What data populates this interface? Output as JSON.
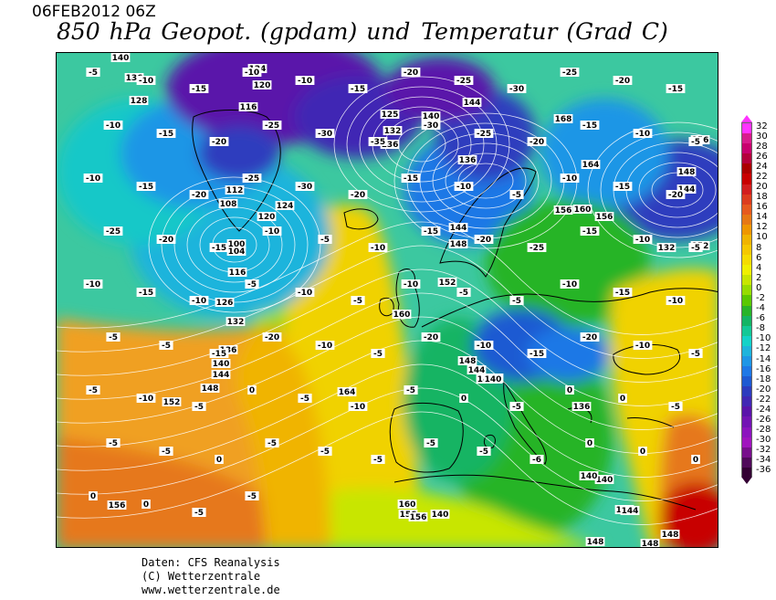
{
  "header": {
    "datestamp": "06FEB2012 06Z",
    "title_left": "850 hPa Geopot. (gpdam) und",
    "title_right": "Temperatur (Grad C)"
  },
  "legend": {
    "unit": "Grad C",
    "values": [
      32,
      30,
      28,
      26,
      24,
      22,
      20,
      18,
      16,
      14,
      12,
      10,
      8,
      6,
      4,
      2,
      0,
      -2,
      -4,
      -6,
      -8,
      -10,
      -12,
      -14,
      -16,
      -18,
      -20,
      -22,
      -24,
      -26,
      -28,
      -30,
      -32,
      -34,
      -36
    ],
    "colors": [
      "#ff33ff",
      "#d81b8c",
      "#c8006e",
      "#b4003c",
      "#aa0000",
      "#c80000",
      "#d21e1e",
      "#dc3c1e",
      "#e65a1e",
      "#e67814",
      "#ee9600",
      "#f0b400",
      "#f5c800",
      "#f5dc00",
      "#f0f000",
      "#c8e600",
      "#96dc00",
      "#5ac800",
      "#28b428",
      "#14b464",
      "#14c896",
      "#14d2c8",
      "#1eb4dc",
      "#1e96e6",
      "#1e78e6",
      "#1e5ad2",
      "#2d3cbe",
      "#4128b4",
      "#5a14aa",
      "#7314b4",
      "#8c14be",
      "#a014be",
      "#780f8c",
      "#500a5a",
      "#330033"
    ]
  },
  "map": {
    "geopotential_labels": [
      {
        "t": "140"
      },
      {
        "t": "136"
      },
      {
        "t": "128"
      },
      {
        "t": "124"
      },
      {
        "t": "120"
      },
      {
        "t": "116"
      },
      {
        "t": "125"
      },
      {
        "t": "132"
      },
      {
        "t": "136"
      },
      {
        "t": "140"
      },
      {
        "t": "144"
      },
      {
        "t": "168"
      },
      {
        "t": "156"
      },
      {
        "t": "164"
      },
      {
        "t": "148"
      },
      {
        "t": "144"
      },
      {
        "t": "136"
      },
      {
        "t": "156"
      },
      {
        "t": "160"
      },
      {
        "t": "144"
      },
      {
        "t": "148"
      },
      {
        "t": "152"
      },
      {
        "t": "152"
      },
      {
        "t": "132"
      },
      {
        "t": "112"
      },
      {
        "t": "108"
      },
      {
        "t": "120"
      },
      {
        "t": "124"
      },
      {
        "t": "100"
      },
      {
        "t": "104"
      },
      {
        "t": "116"
      },
      {
        "t": "126"
      },
      {
        "t": "132"
      },
      {
        "t": "136"
      },
      {
        "t": "140"
      },
      {
        "t": "144"
      },
      {
        "t": "148"
      },
      {
        "t": "152"
      },
      {
        "t": "156"
      },
      {
        "t": "160"
      },
      {
        "t": "164"
      },
      {
        "t": "156"
      },
      {
        "t": "140"
      },
      {
        "t": "144"
      },
      {
        "t": "148"
      },
      {
        "t": "144"
      },
      {
        "t": "140"
      },
      {
        "t": "136"
      },
      {
        "t": "140"
      },
      {
        "t": "144"
      },
      {
        "t": "148"
      },
      {
        "t": "160"
      },
      {
        "t": "156"
      },
      {
        "t": "140"
      },
      {
        "t": "144"
      },
      {
        "t": "148"
      },
      {
        "t": "148"
      },
      {
        "t": "140"
      },
      {
        "t": "156"
      }
    ],
    "temperature_labels": [
      "-5",
      "-10",
      "-15",
      "-10",
      "-10",
      "-15",
      "-20",
      "-25",
      "-30",
      "-25",
      "-20",
      "-15",
      "-10",
      "-15",
      "-20",
      "-25",
      "-30",
      "-35",
      "-30",
      "-25",
      "-20",
      "-15",
      "-10",
      "-5",
      "-10",
      "-15",
      "-20",
      "-25",
      "-30",
      "-20",
      "-15",
      "-10",
      "-5",
      "-10",
      "-15",
      "-20",
      "-25",
      "-20",
      "-15",
      "-10",
      "-5",
      "-10",
      "-15",
      "-20",
      "-25",
      "-15",
      "-10",
      "-5",
      "-10",
      "-15",
      "-10",
      "-5",
      "-10",
      "-5",
      "-10",
      "-5",
      "-5",
      "-10",
      "-15",
      "-10",
      "-5",
      "-5",
      "-15",
      "-20",
      "-10",
      "-5",
      "-20",
      "-10",
      "-15",
      "-20",
      "-10",
      "-5",
      "-5",
      "-10",
      "-5",
      "0",
      "-5",
      "-10",
      "-5",
      "0",
      "-5",
      "0",
      "0",
      "-5",
      "-5",
      "-5",
      "0",
      "-5",
      "-5",
      "-5",
      "-5",
      "-5",
      "-6",
      "0",
      "0",
      "0",
      "0",
      "0",
      "-5",
      "-5"
    ]
  },
  "credits": {
    "line1": "Daten: CFS Reanalysis",
    "line2": "(C) Wetterzentrale",
    "line3": "www.wetterzentrale.de"
  }
}
